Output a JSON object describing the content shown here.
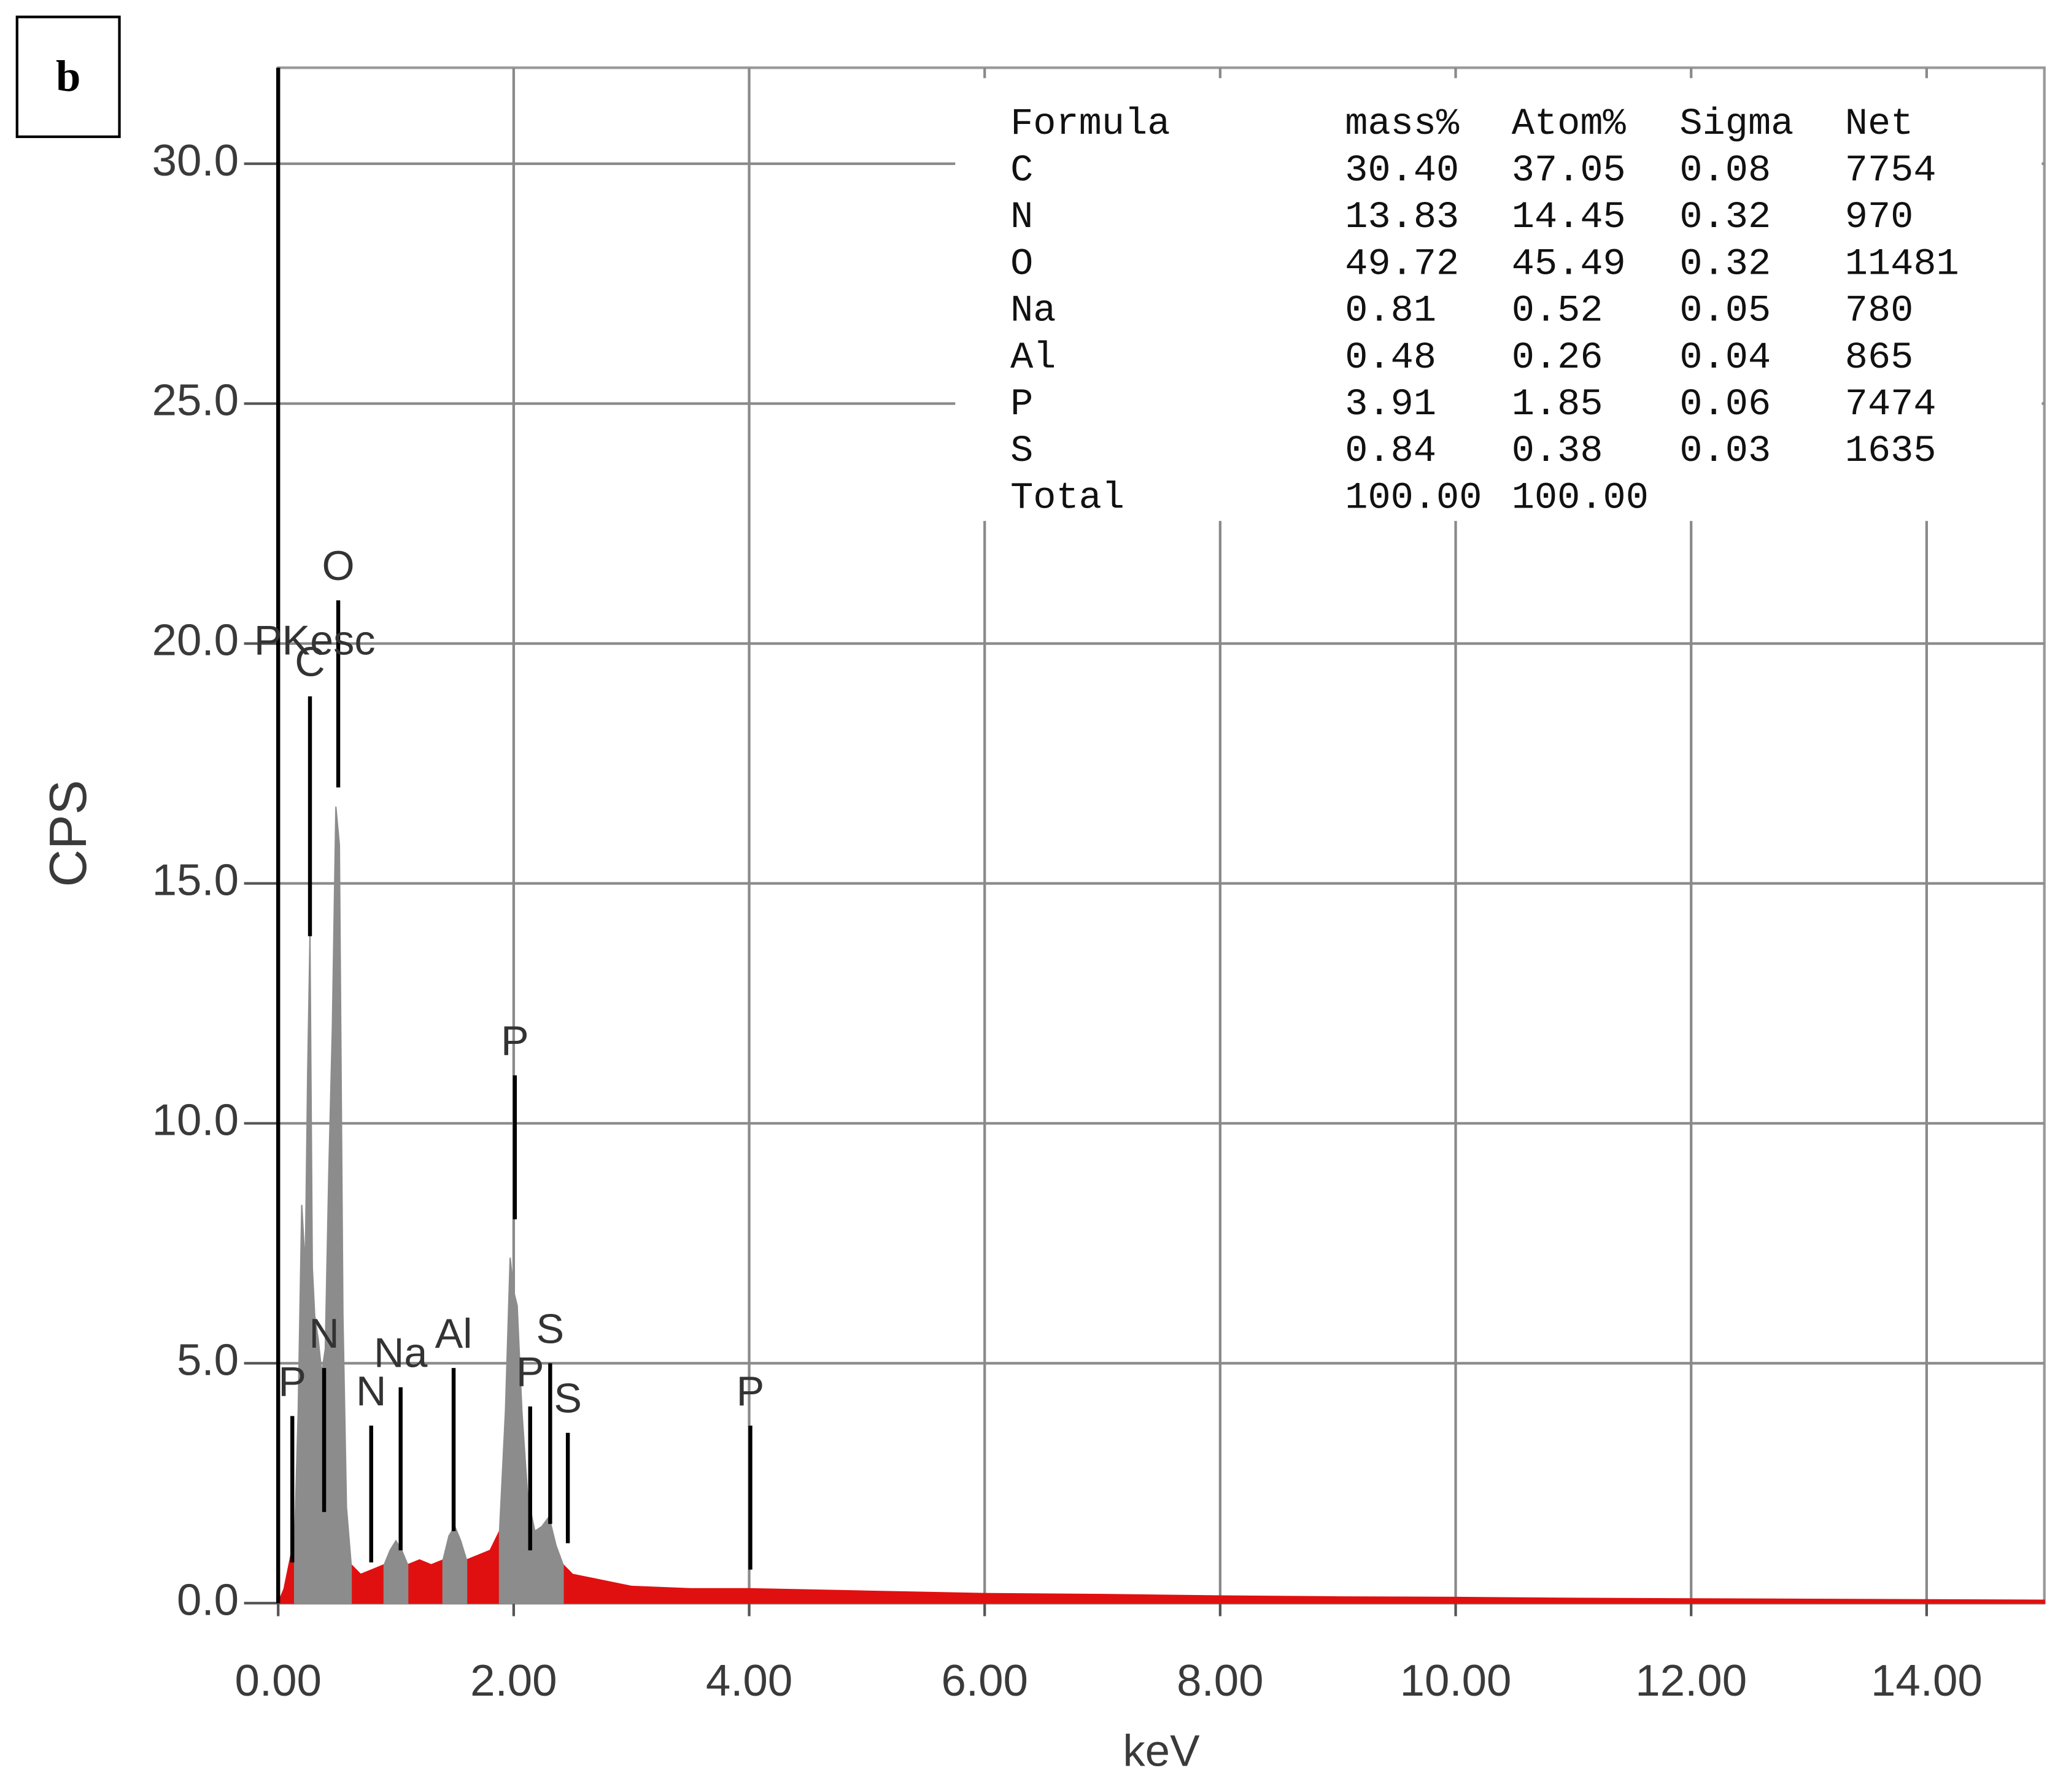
{
  "chart_data": {
    "type": "area",
    "panel_label": "b",
    "x_label": "keV",
    "y_label": "CPS",
    "xlim": [
      0,
      15
    ],
    "ylim": [
      0,
      32
    ],
    "xticks": [
      {
        "value": 0,
        "label": "0.00"
      },
      {
        "value": 2,
        "label": "2.00"
      },
      {
        "value": 4,
        "label": "4.00"
      },
      {
        "value": 6,
        "label": "6.00"
      },
      {
        "value": 8,
        "label": "8.00"
      },
      {
        "value": 10,
        "label": "10.00"
      },
      {
        "value": 12,
        "label": "12.00"
      },
      {
        "value": 14,
        "label": "14.00"
      }
    ],
    "yticks": [
      {
        "value": 0,
        "label": "0.0"
      },
      {
        "value": 5,
        "label": "5.0"
      },
      {
        "value": 10,
        "label": "10.0"
      },
      {
        "value": 15,
        "label": "15.0"
      },
      {
        "value": 20,
        "label": "20.0"
      },
      {
        "value": 25,
        "label": "25.0"
      },
      {
        "value": 30,
        "label": "30.0"
      }
    ],
    "grid": true,
    "x": [
      0,
      0.05,
      0.1,
      0.14,
      0.17,
      0.2,
      0.23,
      0.25,
      0.27,
      0.29,
      0.31,
      0.34,
      0.37,
      0.4,
      0.43,
      0.46,
      0.49,
      0.52,
      0.55,
      0.58,
      0.62,
      0.7,
      0.8,
      0.9,
      0.95,
      1.0,
      1.05,
      1.1,
      1.2,
      1.3,
      1.4,
      1.45,
      1.5,
      1.55,
      1.6,
      1.7,
      1.8,
      1.88,
      1.93,
      1.97,
      2.0,
      2.03,
      2.07,
      2.12,
      2.18,
      2.24,
      2.3,
      2.36,
      2.42,
      2.5,
      2.7,
      3.0,
      3.5,
      4.0,
      5.0,
      6.0,
      7.0,
      8.0,
      9.0,
      10.0,
      11.0,
      12.0,
      13.0,
      14.0,
      15.0
    ],
    "series": [
      {
        "color": "#e01010",
        "values": [
          0.0,
          0.3,
          0.9,
          1.4,
          null,
          null,
          null,
          null,
          null,
          null,
          null,
          null,
          null,
          null,
          null,
          null,
          null,
          null,
          null,
          null,
          0.8,
          0.6,
          0.7,
          0.8,
          null,
          null,
          null,
          0.8,
          0.9,
          0.8,
          0.9,
          null,
          null,
          null,
          0.9,
          1.0,
          1.1,
          1.5,
          null,
          null,
          null,
          null,
          null,
          null,
          null,
          null,
          null,
          null,
          0.8,
          0.6,
          0.5,
          0.35,
          0.3,
          0.3,
          0.25,
          0.2,
          0.18,
          0.15,
          0.13,
          0.12,
          0.1,
          0.09,
          0.08,
          0.07,
          0.06
        ]
      },
      {
        "color": "#8c8c8c",
        "values": [
          null,
          null,
          null,
          1.4,
          4.0,
          8.3,
          7.0,
          11.0,
          13.9,
          7.0,
          6.0,
          5.5,
          4.8,
          5.3,
          9.0,
          12.0,
          16.6,
          15.8,
          6.0,
          2.0,
          0.8,
          null,
          null,
          0.8,
          1.1,
          1.3,
          1.1,
          0.8,
          null,
          null,
          0.9,
          1.4,
          1.6,
          1.3,
          0.9,
          null,
          null,
          1.5,
          4.0,
          7.2,
          6.5,
          6.2,
          4.0,
          2.2,
          1.5,
          1.6,
          1.8,
          1.2,
          0.8,
          null,
          null,
          null,
          null,
          null,
          null,
          null,
          null,
          null,
          null,
          null,
          null,
          null,
          null,
          null,
          null
        ]
      }
    ],
    "peak_markers": [
      {
        "label": "O",
        "x": 0.51,
        "y": 20.9,
        "y0": 17.0
      },
      {
        "label": "C",
        "x": 0.27,
        "y": 18.9,
        "y0": 13.9
      },
      {
        "label": "P",
        "x": 0.12,
        "y": 3.9,
        "y0": 0.85
      },
      {
        "label": "N",
        "x": 0.39,
        "y": 4.9,
        "y0": 1.9
      },
      {
        "label": "N",
        "x": 0.79,
        "y": 3.7,
        "y0": 0.85
      },
      {
        "label": "Na",
        "x": 1.04,
        "y": 4.5,
        "y0": 1.1
      },
      {
        "label": "Al",
        "x": 1.49,
        "y": 4.9,
        "y0": 1.5
      },
      {
        "label": "P",
        "x": 2.01,
        "y": 11.0,
        "y0": 8.0
      },
      {
        "label": "P",
        "x": 2.14,
        "y": 4.1,
        "y0": 1.1
      },
      {
        "label": "S",
        "x": 2.31,
        "y": 5.0,
        "y0": 1.65
      },
      {
        "label": "S",
        "x": 2.46,
        "y": 3.55,
        "y0": 1.25
      },
      {
        "label": "P",
        "x": 4.01,
        "y": 3.7,
        "y0": 0.7
      }
    ],
    "annotations": [
      {
        "text": "PKesc",
        "x": 0.31,
        "y": 20.0
      }
    ],
    "table": {
      "columns": [
        "Formula",
        "mass%",
        "Atom%",
        "Sigma",
        "Net"
      ],
      "rows": [
        [
          "C",
          "30.40",
          "37.05",
          "0.08",
          "7754"
        ],
        [
          "N",
          "13.83",
          "14.45",
          "0.32",
          "970"
        ],
        [
          "O",
          "49.72",
          "45.49",
          "0.32",
          "11481"
        ],
        [
          "Na",
          "0.81",
          "0.52",
          "0.05",
          "780"
        ],
        [
          "Al",
          "0.48",
          "0.26",
          "0.04",
          "865"
        ],
        [
          "P",
          "3.91",
          "1.85",
          "0.06",
          "7474"
        ],
        [
          "S",
          "0.84",
          "0.38",
          "0.03",
          "1635"
        ],
        [
          "Total",
          "100.00",
          "100.00"
        ]
      ]
    }
  }
}
